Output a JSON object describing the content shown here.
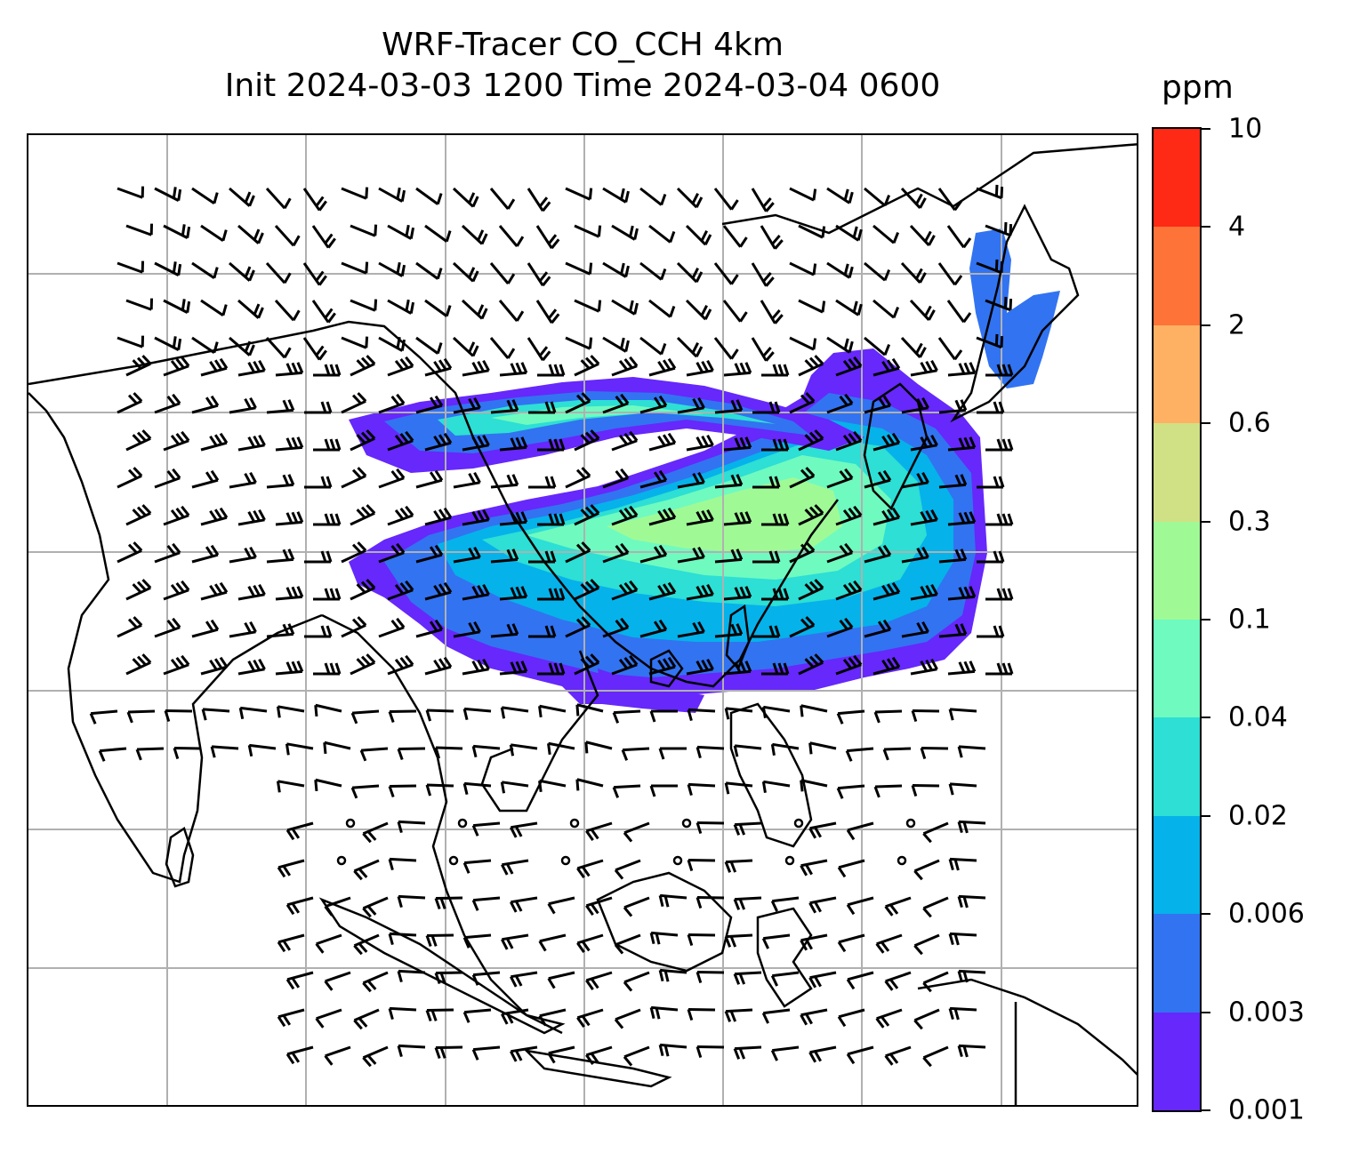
{
  "title_line1": "WRF-Tracer CO_CCH 4km",
  "title_line2": "Init 2024-03-03 1200 Time 2024-03-04 0600",
  "colorbar": {
    "unit": "ppm",
    "levels": [
      "0.001",
      "0.003",
      "0.006",
      "0.02",
      "0.04",
      "0.1",
      "0.3",
      "0.6",
      "2",
      "4",
      "10"
    ],
    "colors": [
      "#6628fb",
      "#3273f1",
      "#06b2ea",
      "#2ddfd4",
      "#6ffac0",
      "#9ffa96",
      "#cfe184",
      "#feb163",
      "#fe7338",
      "#fe2a16"
    ]
  },
  "map": {
    "grid_lines": true,
    "coastline_color": "#000000",
    "grid_color": "#b0b0b0"
  }
}
